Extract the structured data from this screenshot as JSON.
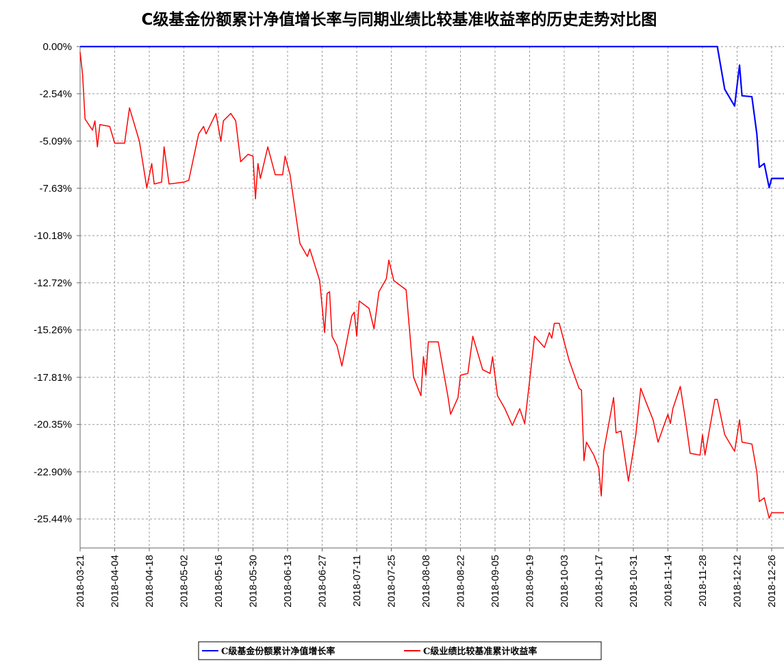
{
  "chart_data": {
    "type": "line",
    "title": "C级基金份额累计净值增长率与同期业绩比较基准收益率的历史走势对比图",
    "x": [
      "2018-03-21",
      "2018-03-22",
      "2018-03-23",
      "2018-03-26",
      "2018-03-27",
      "2018-03-28",
      "2018-03-29",
      "2018-04-02",
      "2018-04-04",
      "2018-04-08",
      "2018-04-10",
      "2018-04-14",
      "2018-04-17",
      "2018-04-19",
      "2018-04-20",
      "2018-04-23",
      "2018-04-24",
      "2018-04-26",
      "2018-05-02",
      "2018-05-04",
      "2018-05-08",
      "2018-05-10",
      "2018-05-11",
      "2018-05-15",
      "2018-05-17",
      "2018-05-18",
      "2018-05-21",
      "2018-05-23",
      "2018-05-25",
      "2018-05-28",
      "2018-05-30",
      "2018-05-31",
      "2018-06-01",
      "2018-06-02",
      "2018-06-05",
      "2018-06-08",
      "2018-06-11",
      "2018-06-12",
      "2018-06-14",
      "2018-06-18",
      "2018-06-21",
      "2018-06-22",
      "2018-06-26",
      "2018-06-28",
      "2018-06-29",
      "2018-06-30",
      "2018-07-01",
      "2018-07-03",
      "2018-07-05",
      "2018-07-09",
      "2018-07-10",
      "2018-07-11",
      "2018-07-12",
      "2018-07-16",
      "2018-07-18",
      "2018-07-20",
      "2018-07-23",
      "2018-07-24",
      "2018-07-26",
      "2018-07-31",
      "2018-08-03",
      "2018-08-06",
      "2018-08-07",
      "2018-08-08",
      "2018-08-09",
      "2018-08-13",
      "2018-08-17",
      "2018-08-18",
      "2018-08-21",
      "2018-08-22",
      "2018-08-25",
      "2018-08-27",
      "2018-08-31",
      "2018-09-03",
      "2018-09-04",
      "2018-09-06",
      "2018-09-09",
      "2018-09-12",
      "2018-09-15",
      "2018-09-17",
      "2018-09-19",
      "2018-09-21",
      "2018-09-25",
      "2018-09-27",
      "2018-09-28",
      "2018-09-29",
      "2018-10-01",
      "2018-10-05",
      "2018-10-09",
      "2018-10-10",
      "2018-10-11",
      "2018-10-12",
      "2018-10-15",
      "2018-10-17",
      "2018-10-18",
      "2018-10-19",
      "2018-10-23",
      "2018-10-24",
      "2018-10-26",
      "2018-10-29",
      "2018-11-01",
      "2018-11-03",
      "2018-11-05",
      "2018-11-08",
      "2018-11-10",
      "2018-11-14",
      "2018-11-15",
      "2018-11-16",
      "2018-11-19",
      "2018-11-21",
      "2018-11-23",
      "2018-11-27",
      "2018-11-28",
      "2018-11-29",
      "2018-12-03",
      "2018-12-04",
      "2018-12-07",
      "2018-12-11",
      "2018-12-13",
      "2018-12-14",
      "2018-12-18",
      "2018-12-20",
      "2018-12-21",
      "2018-12-23",
      "2018-12-25",
      "2018-12-26",
      "2018-12-31"
    ],
    "series": [
      {
        "name": "C级基金份额累计净值增长率",
        "color": "#0000ff",
        "values": [
          0,
          0,
          0,
          0,
          0,
          0,
          0,
          0,
          0,
          0,
          0,
          0,
          0,
          0,
          0,
          0,
          0,
          0,
          0,
          0,
          0,
          0,
          0,
          0,
          0,
          0,
          0,
          0,
          0,
          0,
          0,
          0,
          0,
          0,
          0,
          0,
          0,
          0,
          0,
          0,
          0,
          0,
          0,
          0,
          0,
          0,
          0,
          0,
          0,
          0,
          0,
          0,
          0,
          0,
          0,
          0,
          0,
          0,
          0,
          0,
          0,
          0,
          0,
          0,
          0,
          0,
          0,
          0,
          0,
          0,
          0,
          0,
          0,
          0,
          0,
          0,
          0,
          0,
          0,
          0,
          0,
          0,
          0,
          0,
          0,
          0,
          0,
          0,
          0,
          0,
          0,
          0,
          0,
          0,
          0,
          0,
          0,
          0,
          0,
          0,
          0,
          0,
          0,
          0,
          0,
          0,
          0,
          0,
          0,
          0,
          0,
          0,
          0,
          0,
          0,
          0,
          -2.3,
          -3.2,
          -1.0,
          -2.65,
          -2.7,
          -4.7,
          -6.5,
          -6.3,
          -7.6,
          -7.1,
          -7.1
        ]
      },
      {
        "name": "C级业绩比较基准累计收益率",
        "color": "#ff0000",
        "values": [
          -0.3,
          -1.5,
          -3.9,
          -4.5,
          -4.0,
          -5.4,
          -4.2,
          -4.3,
          -5.2,
          -5.2,
          -3.3,
          -5.1,
          -7.6,
          -6.3,
          -7.4,
          -7.3,
          -5.4,
          -7.4,
          -7.3,
          -7.2,
          -4.7,
          -4.3,
          -4.7,
          -3.6,
          -5.1,
          -4.0,
          -3.6,
          -4.0,
          -6.2,
          -5.8,
          -5.9,
          -8.2,
          -6.3,
          -7.1,
          -5.4,
          -6.9,
          -6.9,
          -5.9,
          -6.9,
          -10.6,
          -11.3,
          -10.9,
          -12.6,
          -15.4,
          -13.3,
          -13.2,
          -15.6,
          -16.1,
          -17.2,
          -14.5,
          -14.3,
          -15.6,
          -13.7,
          -14.1,
          -15.2,
          -13.2,
          -12.5,
          -11.5,
          -12.6,
          -13.1,
          -17.8,
          -18.8,
          -16.7,
          -17.7,
          -15.9,
          -15.9,
          -18.9,
          -19.8,
          -18.9,
          -17.7,
          -17.6,
          -15.6,
          -17.4,
          -17.6,
          -16.7,
          -18.8,
          -19.5,
          -20.4,
          -19.5,
          -20.3,
          -18.0,
          -15.6,
          -16.2,
          -15.4,
          -15.7,
          -14.9,
          -14.9,
          -16.9,
          -18.4,
          -18.5,
          -22.3,
          -21.3,
          -22.0,
          -22.7,
          -24.2,
          -21.8,
          -18.9,
          -20.8,
          -20.7,
          -23.4,
          -20.9,
          -18.4,
          -19.1,
          -20.1,
          -21.3,
          -19.8,
          -20.3,
          -19.5,
          -18.3,
          -20.0,
          -21.9,
          -22.0,
          -20.9,
          -22.0,
          -19.0,
          -19.0,
          -20.9,
          -21.8,
          -20.1,
          -21.3,
          -21.4,
          -22.9,
          -24.5,
          -24.3,
          -25.4,
          -25.1,
          -25.1
        ]
      }
    ],
    "xlim": [
      "2018-03-21",
      "2018-12-31"
    ],
    "xticks": [
      "2018-03-21",
      "2018-04-04",
      "2018-04-18",
      "2018-05-02",
      "2018-05-16",
      "2018-05-30",
      "2018-06-13",
      "2018-06-27",
      "2018-07-11",
      "2018-07-25",
      "2018-08-08",
      "2018-08-22",
      "2018-09-05",
      "2018-09-19",
      "2018-10-03",
      "2018-10-17",
      "2018-10-31",
      "2018-11-14",
      "2018-11-28",
      "2018-12-12",
      "2018-12-26"
    ],
    "ylim": [
      -27,
      0
    ],
    "yticks": [
      {
        "value": 0,
        "label": "0.00%"
      },
      {
        "value": -2.54,
        "label": "-2.54%"
      },
      {
        "value": -5.09,
        "label": "-5.09%"
      },
      {
        "value": -7.63,
        "label": "-7.63%"
      },
      {
        "value": -10.18,
        "label": "-10.18%"
      },
      {
        "value": -12.72,
        "label": "-12.72%"
      },
      {
        "value": -15.26,
        "label": "-15.26%"
      },
      {
        "value": -17.81,
        "label": "-17.81%"
      },
      {
        "value": -20.35,
        "label": "-20.35%"
      },
      {
        "value": -22.9,
        "label": "-22.90%"
      },
      {
        "value": -25.44,
        "label": "-25.44%"
      }
    ],
    "grid": true,
    "legend": "bottom"
  }
}
